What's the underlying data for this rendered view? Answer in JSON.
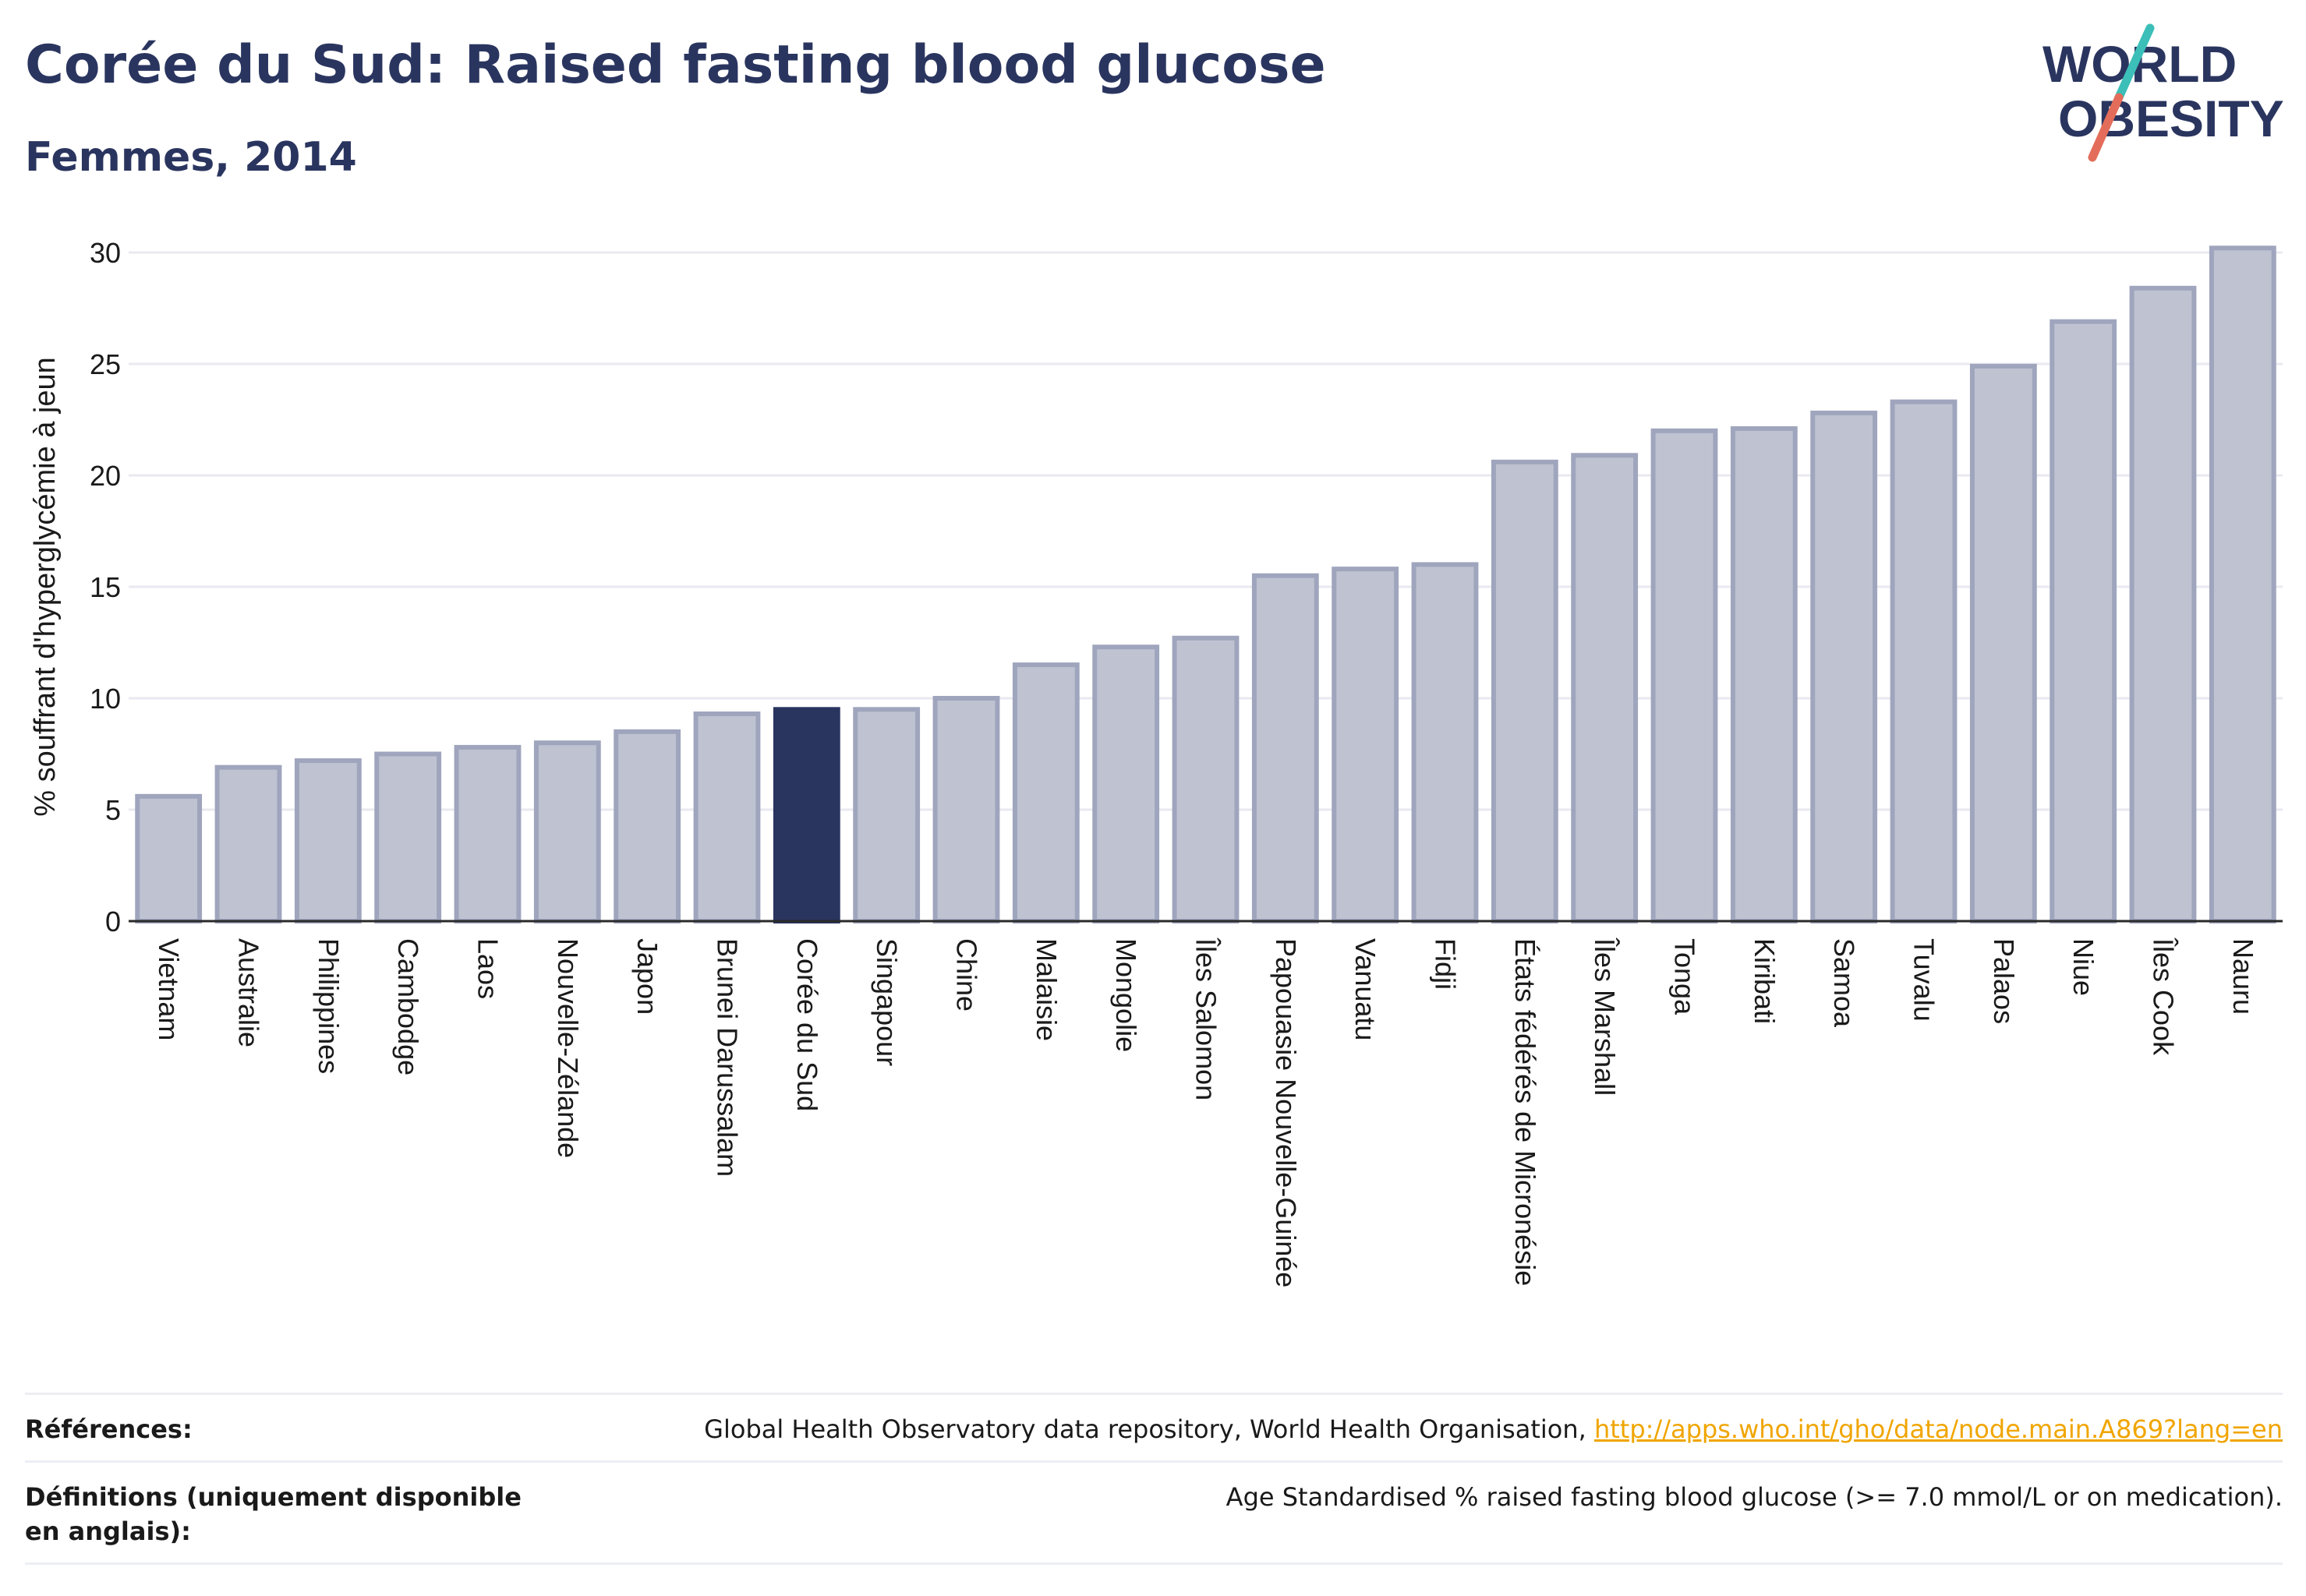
{
  "title": "Corée du Sud: Raised fasting blood glucose",
  "subtitle": "Femmes, 2014",
  "logo": {
    "line1": "WORLD",
    "line2": "OBESITY"
  },
  "colors": {
    "highlight": "#2a355f",
    "bar_fill": "#bfc3d1",
    "bar_stroke": "#9fa5bd",
    "grid": "#e9eaf0",
    "link": "#f0a500",
    "logo_teal": "#3bbfb8",
    "logo_coral": "#e36d5a"
  },
  "chart_data": {
    "type": "bar",
    "ylabel": "% souffrant d'hyperglycémie à jeun",
    "xlabel": "",
    "ylim": [
      0,
      30
    ],
    "yticks": [
      0,
      5,
      10,
      15,
      20,
      25,
      30
    ],
    "grid": true,
    "highlight": "Corée du Sud",
    "categories": [
      "Vietnam",
      "Australie",
      "Philippines",
      "Cambodge",
      "Laos",
      "Nouvelle-Zélande",
      "Japon",
      "Brunei Darussalam",
      "Corée du Sud",
      "Singapour",
      "Chine",
      "Malaisie",
      "Mongolie",
      "Îles Salomon",
      "Papouasie Nouvelle-Guinée",
      "Vanuatu",
      "Fidji",
      "États fédérés de Micronésie",
      "Îles Marshall",
      "Tonga",
      "Kiribati",
      "Samoa",
      "Tuvalu",
      "Palaos",
      "Niue",
      "Îles Cook",
      "Nauru"
    ],
    "values": [
      5.6,
      6.9,
      7.2,
      7.5,
      7.8,
      8.0,
      8.5,
      9.3,
      9.5,
      9.5,
      10.0,
      11.5,
      12.3,
      12.7,
      15.5,
      15.8,
      16.0,
      20.6,
      20.9,
      22.0,
      22.1,
      22.8,
      23.3,
      24.9,
      26.9,
      28.4,
      30.2
    ]
  },
  "footer": {
    "references_label": "Références:",
    "references_text": "Global Health Observatory data repository, World Health Organisation,",
    "references_link": "http://apps.who.int/gho/data/node.main.A869?lang=en",
    "definitions_label": "Définitions (uniquement disponible en anglais):",
    "definitions_text": "Age Standardised % raised fasting blood glucose (>= 7.0 mmol/L or on medication)."
  }
}
